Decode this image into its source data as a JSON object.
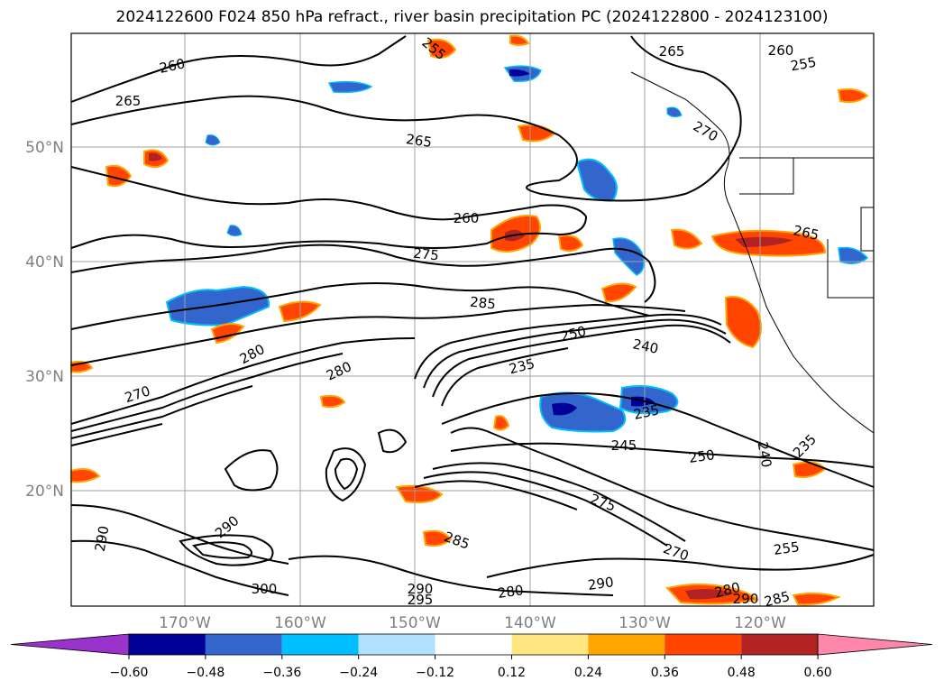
{
  "title": "2024122600 F024 850 hPa refract., river basin precipitation PC (2024122800 - 2024123100)",
  "lat_labels": [
    "50°N",
    "40°N",
    "30°N",
    "20°N"
  ],
  "lon_labels": [
    "170°W",
    "160°W",
    "150°W",
    "140°W",
    "130°W",
    "120°W"
  ],
  "contour_labels": [
    "260",
    "265",
    "265",
    "260",
    "260",
    "255",
    "265",
    "270",
    "275",
    "285",
    "280",
    "280",
    "270",
    "250",
    "240",
    "235",
    "235",
    "245",
    "250",
    "240",
    "235",
    "265",
    "290",
    "290",
    "300",
    "285",
    "280",
    "290",
    "270",
    "255",
    "280",
    "290",
    "285",
    "295",
    "290",
    "255",
    "275"
  ],
  "colorbar": {
    "colors": [
      "#9933cc",
      "#000099",
      "#3366cc",
      "#00bfff",
      "#b0e2ff",
      "#ffffff",
      "#ffe680",
      "#ffa500",
      "#ff4500",
      "#b22222",
      "#ff88aa"
    ],
    "tick_labels": [
      "−0.60",
      "−0.48",
      "−0.36",
      "−0.24",
      "−0.12",
      "0.12",
      "0.24",
      "0.36",
      "0.48",
      "0.60"
    ]
  },
  "colors": {
    "contour": "#000000",
    "grid": "#a0a0a0",
    "coast": "#000000"
  }
}
